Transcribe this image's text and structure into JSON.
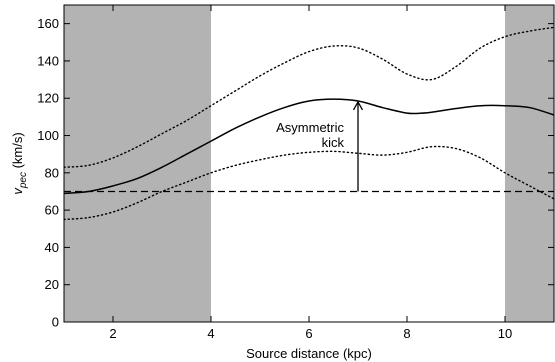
{
  "chart_data": {
    "type": "line",
    "xlabel": "Source distance (kpc)",
    "ylabel_main": "v",
    "ylabel_sub": "pec",
    "ylabel_unit": " (km/s)",
    "xlim": [
      1,
      11
    ],
    "ylim": [
      0,
      170
    ],
    "xticks": [
      2,
      4,
      6,
      8,
      10
    ],
    "yticks": [
      0,
      20,
      40,
      60,
      80,
      100,
      120,
      140,
      160
    ],
    "grid": false,
    "shaded_regions": [
      {
        "x": [
          1,
          4
        ],
        "color": "#b3b3b3"
      },
      {
        "x": [
          10,
          11
        ],
        "color": "#b3b3b3"
      }
    ],
    "series": [
      {
        "style": "solid",
        "x": [
          1,
          1.5,
          2,
          2.5,
          3,
          3.5,
          4,
          4.5,
          5,
          5.5,
          6,
          6.5,
          7,
          7.5,
          8,
          8.3,
          8.5,
          9,
          9.5,
          10,
          10.5,
          11
        ],
        "y": [
          69,
          70,
          73,
          77,
          83,
          90,
          97,
          104,
          110,
          115,
          118.5,
          119.5,
          118.5,
          115,
          112,
          112,
          112.5,
          114.5,
          116,
          116,
          115,
          111
        ]
      },
      {
        "style": "dotted",
        "x": [
          1,
          1.5,
          2,
          2.5,
          3,
          3.5,
          4,
          4.5,
          5,
          5.5,
          6,
          6.5,
          7,
          7.5,
          8,
          8.5,
          9,
          9.5,
          10,
          10.5,
          11
        ],
        "y": [
          83,
          84,
          88,
          94,
          101,
          108,
          116,
          124,
          132,
          139,
          145,
          148,
          147,
          141,
          133,
          130,
          137,
          147,
          153,
          156,
          158
        ]
      },
      {
        "style": "dotted",
        "x": [
          1,
          1.5,
          2,
          2.5,
          3,
          3.5,
          4,
          4.5,
          5,
          5.5,
          6,
          6.5,
          7,
          7.5,
          8,
          8.5,
          9,
          9.5,
          10,
          10.5,
          11
        ],
        "y": [
          55,
          56,
          59,
          64,
          70,
          75,
          80,
          84,
          87,
          89.5,
          91,
          91.5,
          90.5,
          89.5,
          91,
          94,
          93,
          88,
          80,
          73,
          66
        ]
      },
      {
        "style": "dashed",
        "x": [
          1,
          11
        ],
        "y": [
          70,
          70
        ]
      }
    ],
    "annotation": {
      "lines": [
        "Asymmetric",
        "kick"
      ],
      "arrow_x": 7,
      "arrow_from_y": 70,
      "arrow_to_y": 118
    }
  }
}
